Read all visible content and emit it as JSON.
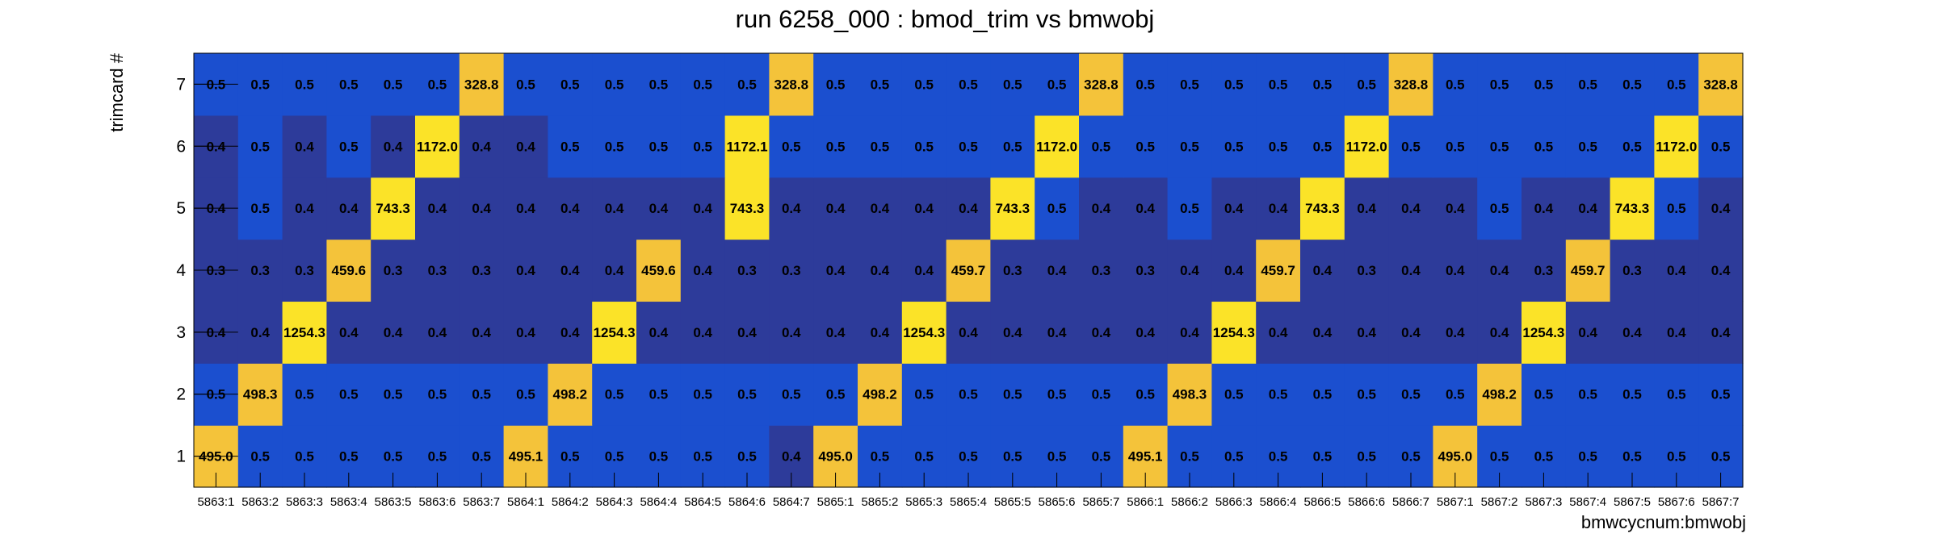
{
  "chart_data": {
    "type": "heatmap",
    "title": "run 6258_000 : bmod_trim vs bmwobj",
    "xlabel": "bmwcycnum:bmwobj",
    "ylabel": "trimcard #",
    "x_categories": [
      "5863:1",
      "5863:2",
      "5863:3",
      "5863:4",
      "5863:5",
      "5863:6",
      "5863:7",
      "5864:1",
      "5864:2",
      "5864:3",
      "5864:4",
      "5864:5",
      "5864:6",
      "5864:7",
      "5865:1",
      "5865:2",
      "5865:3",
      "5865:4",
      "5865:5",
      "5865:6",
      "5865:7",
      "5866:1",
      "5866:2",
      "5866:3",
      "5866:4",
      "5866:5",
      "5866:6",
      "5866:7",
      "5867:1",
      "5867:2",
      "5867:3",
      "5867:4",
      "5867:5",
      "5867:6",
      "5867:7"
    ],
    "y_categories": [
      "1",
      "2",
      "3",
      "4",
      "5",
      "6",
      "7"
    ],
    "values": [
      [
        "495.0",
        "0.5",
        "0.5",
        "0.5",
        "0.5",
        "0.5",
        "0.5",
        "495.1",
        "0.5",
        "0.5",
        "0.5",
        "0.5",
        "0.5",
        "0.4",
        "495.0",
        "0.5",
        "0.5",
        "0.5",
        "0.5",
        "0.5",
        "0.5",
        "495.1",
        "0.5",
        "0.5",
        "0.5",
        "0.5",
        "0.5",
        "0.5",
        "495.0",
        "0.5",
        "0.5",
        "0.5",
        "0.5",
        "0.5",
        "0.5"
      ],
      [
        "0.5",
        "498.3",
        "0.5",
        "0.5",
        "0.5",
        "0.5",
        "0.5",
        "0.5",
        "498.2",
        "0.5",
        "0.5",
        "0.5",
        "0.5",
        "0.5",
        "0.5",
        "498.2",
        "0.5",
        "0.5",
        "0.5",
        "0.5",
        "0.5",
        "0.5",
        "498.3",
        "0.5",
        "0.5",
        "0.5",
        "0.5",
        "0.5",
        "0.5",
        "498.2",
        "0.5",
        "0.5",
        "0.5",
        "0.5",
        "0.5"
      ],
      [
        "0.4",
        "0.4",
        "1254.3",
        "0.4",
        "0.4",
        "0.4",
        "0.4",
        "0.4",
        "0.4",
        "1254.3",
        "0.4",
        "0.4",
        "0.4",
        "0.4",
        "0.4",
        "0.4",
        "1254.3",
        "0.4",
        "0.4",
        "0.4",
        "0.4",
        "0.4",
        "0.4",
        "1254.3",
        "0.4",
        "0.4",
        "0.4",
        "0.4",
        "0.4",
        "0.4",
        "1254.3",
        "0.4",
        "0.4",
        "0.4",
        "0.4"
      ],
      [
        "0.3",
        "0.3",
        "0.3",
        "459.6",
        "0.3",
        "0.3",
        "0.3",
        "0.4",
        "0.4",
        "0.4",
        "459.6",
        "0.4",
        "0.3",
        "0.3",
        "0.4",
        "0.4",
        "0.4",
        "459.7",
        "0.3",
        "0.4",
        "0.3",
        "0.3",
        "0.4",
        "0.4",
        "459.7",
        "0.4",
        "0.3",
        "0.4",
        "0.4",
        "0.4",
        "0.3",
        "459.7",
        "0.3",
        "0.4",
        "0.4"
      ],
      [
        "0.4",
        "0.5",
        "0.4",
        "0.4",
        "743.3",
        "0.4",
        "0.4",
        "0.4",
        "0.4",
        "0.4",
        "0.4",
        "0.4",
        "743.3",
        "0.4",
        "0.4",
        "0.4",
        "0.4",
        "0.4",
        "743.3",
        "0.5",
        "0.4",
        "0.4",
        "0.5",
        "0.4",
        "0.4",
        "743.3",
        "0.4",
        "0.4",
        "0.4",
        "0.5",
        "0.4",
        "0.4",
        "743.3",
        "0.5",
        "0.4"
      ],
      [
        "0.4",
        "0.5",
        "0.4",
        "0.5",
        "0.4",
        "1172.0",
        "0.4",
        "0.4",
        "0.5",
        "0.5",
        "0.5",
        "0.5",
        "1172.1",
        "0.5",
        "0.5",
        "0.5",
        "0.5",
        "0.5",
        "0.5",
        "1172.0",
        "0.5",
        "0.5",
        "0.5",
        "0.5",
        "0.5",
        "0.5",
        "1172.0",
        "0.5",
        "0.5",
        "0.5",
        "0.5",
        "0.5",
        "0.5",
        "1172.0",
        "0.5"
      ],
      [
        "0.5",
        "0.5",
        "0.5",
        "0.5",
        "0.5",
        "0.5",
        "328.8",
        "0.5",
        "0.5",
        "0.5",
        "0.5",
        "0.5",
        "0.5",
        "328.8",
        "0.5",
        "0.5",
        "0.5",
        "0.5",
        "0.5",
        "0.5",
        "328.8",
        "0.5",
        "0.5",
        "0.5",
        "0.5",
        "0.5",
        "0.5",
        "328.8",
        "0.5",
        "0.5",
        "0.5",
        "0.5",
        "0.5",
        "0.5",
        "328.8"
      ]
    ],
    "colors": {
      "low": "#2d3b9a",
      "mid": "#1b4fcf",
      "orange": "#f4c33a",
      "yellow": "#fbe328"
    },
    "grid": false,
    "legend": "none"
  }
}
